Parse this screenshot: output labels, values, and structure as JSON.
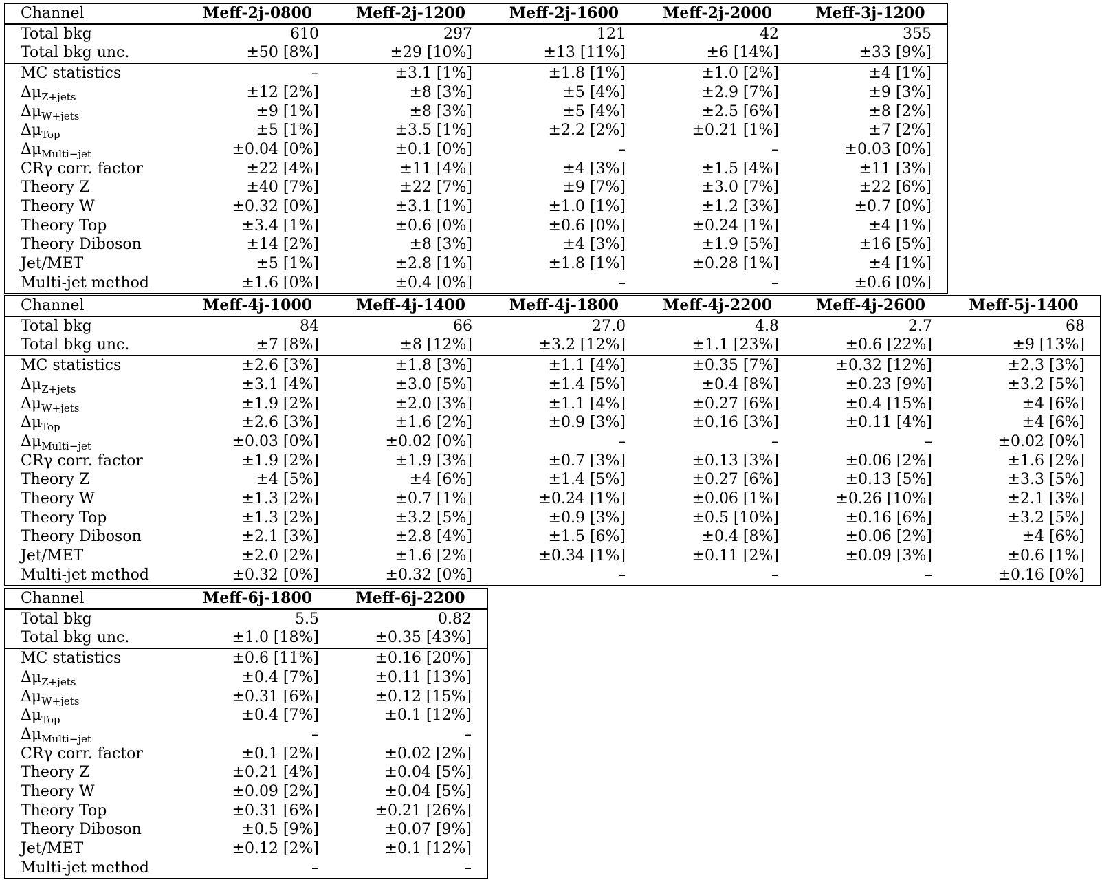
{
  "row_labels": [
    "Channel",
    "Total bkg",
    "Total bkg unc.",
    "MC statistics",
    "Δμ_Z+jets",
    "Δμ_W+jets",
    "Δμ_Top",
    "Δμ_Multi−jet",
    "CRγ corr. factor",
    "Theory Z",
    "Theory W",
    "Theory Top",
    "Theory Diboson",
    "Jet/MET",
    "Multi-jet method"
  ],
  "tables": [
    {
      "headers": [
        "Meff-2j-0800",
        "Meff-2j-1200",
        "Meff-2j-1600",
        "Meff-2j-2000",
        "Meff-3j-1200"
      ],
      "rows": [
        [
          "610",
          "297",
          "121",
          "42",
          "355"
        ],
        [
          "±50 [8%]",
          "±29 [10%]",
          "±13 [11%]",
          "±6 [14%]",
          "±33 [9%]"
        ],
        [
          "–",
          "±3.1 [1%]",
          "±1.8 [1%]",
          "±1.0 [2%]",
          "±4 [1%]"
        ],
        [
          "±12 [2%]",
          "±8 [3%]",
          "±5 [4%]",
          "±2.9 [7%]",
          "±9 [3%]"
        ],
        [
          "±9 [1%]",
          "±8 [3%]",
          "±5 [4%]",
          "±2.5 [6%]",
          "±8 [2%]"
        ],
        [
          "±5 [1%]",
          "±3.5 [1%]",
          "±2.2 [2%]",
          "±0.21 [1%]",
          "±7 [2%]"
        ],
        [
          "±0.04 [0%]",
          "±0.1 [0%]",
          "–",
          "–",
          "±0.03 [0%]"
        ],
        [
          "±22 [4%]",
          "±11 [4%]",
          "±4 [3%]",
          "±1.5 [4%]",
          "±11 [3%]"
        ],
        [
          "±40 [7%]",
          "±22 [7%]",
          "±9 [7%]",
          "±3.0 [7%]",
          "±22 [6%]"
        ],
        [
          "±0.32 [0%]",
          "±3.1 [1%]",
          "±1.0 [1%]",
          "±1.2 [3%]",
          "±0.7 [0%]"
        ],
        [
          "±3.4 [1%]",
          "±0.6 [0%]",
          "±0.6 [0%]",
          "±0.24 [1%]",
          "±4 [1%]"
        ],
        [
          "±14 [2%]",
          "±8 [3%]",
          "±4 [3%]",
          "±1.9 [5%]",
          "±16 [5%]"
        ],
        [
          "±5 [1%]",
          "±2.8 [1%]",
          "±1.8 [1%]",
          "±0.28 [1%]",
          "±4 [1%]"
        ],
        [
          "±1.6 [0%]",
          "±0.4 [0%]",
          "–",
          "–",
          "±0.6 [0%]"
        ]
      ]
    },
    {
      "headers": [
        "Meff-4j-1000",
        "Meff-4j-1400",
        "Meff-4j-1800",
        "Meff-4j-2200",
        "Meff-4j-2600",
        "Meff-5j-1400"
      ],
      "rows": [
        [
          "84",
          "66",
          "27.0",
          "4.8",
          "2.7",
          "68"
        ],
        [
          "±7 [8%]",
          "±8 [12%]",
          "±3.2 [12%]",
          "±1.1 [23%]",
          "±0.6 [22%]",
          "±9 [13%]"
        ],
        [
          "±2.6 [3%]",
          "±1.8 [3%]",
          "±1.1 [4%]",
          "±0.35 [7%]",
          "±0.32 [12%]",
          "±2.3 [3%]"
        ],
        [
          "±3.1 [4%]",
          "±3.0 [5%]",
          "±1.4 [5%]",
          "±0.4 [8%]",
          "±0.23 [9%]",
          "±3.2 [5%]"
        ],
        [
          "±1.9 [2%]",
          "±2.0 [3%]",
          "±1.1 [4%]",
          "±0.27 [6%]",
          "±0.4 [15%]",
          "±4 [6%]"
        ],
        [
          "±2.6 [3%]",
          "±1.6 [2%]",
          "±0.9 [3%]",
          "±0.16 [3%]",
          "±0.11 [4%]",
          "±4 [6%]"
        ],
        [
          "±0.03 [0%]",
          "±0.02 [0%]",
          "–",
          "–",
          "–",
          "±0.02 [0%]"
        ],
        [
          "±1.9 [2%]",
          "±1.9 [3%]",
          "±0.7 [3%]",
          "±0.13 [3%]",
          "±0.06 [2%]",
          "±1.6 [2%]"
        ],
        [
          "±4 [5%]",
          "±4 [6%]",
          "±1.4 [5%]",
          "±0.27 [6%]",
          "±0.13 [5%]",
          "±3.3 [5%]"
        ],
        [
          "±1.3 [2%]",
          "±0.7 [1%]",
          "±0.24 [1%]",
          "±0.06 [1%]",
          "±0.26 [10%]",
          "±2.1 [3%]"
        ],
        [
          "±1.3 [2%]",
          "±3.2 [5%]",
          "±0.9 [3%]",
          "±0.5 [10%]",
          "±0.16 [6%]",
          "±3.2 [5%]"
        ],
        [
          "±2.1 [3%]",
          "±2.8 [4%]",
          "±1.5 [6%]",
          "±0.4 [8%]",
          "±0.06 [2%]",
          "±4 [6%]"
        ],
        [
          "±2.0 [2%]",
          "±1.6 [2%]",
          "±0.34 [1%]",
          "±0.11 [2%]",
          "±0.09 [3%]",
          "±0.6 [1%]"
        ],
        [
          "±0.32 [0%]",
          "±0.32 [0%]",
          "–",
          "–",
          "–",
          "±0.16 [0%]"
        ]
      ]
    },
    {
      "headers": [
        "Meff-6j-1800",
        "Meff-6j-2200"
      ],
      "rows": [
        [
          "5.5",
          "0.82"
        ],
        [
          "±1.0 [18%]",
          "±0.35 [43%]"
        ],
        [
          "±0.6 [11%]",
          "±0.16 [20%]"
        ],
        [
          "±0.4 [7%]",
          "±0.11 [13%]"
        ],
        [
          "±0.31 [6%]",
          "±0.12 [15%]"
        ],
        [
          "±0.4 [7%]",
          "±0.1 [12%]"
        ],
        [
          "–",
          "–"
        ],
        [
          "±0.1 [2%]",
          "±0.02 [2%]"
        ],
        [
          "±0.21 [4%]",
          "±0.04 [5%]"
        ],
        [
          "±0.09 [2%]",
          "±0.04 [5%]"
        ],
        [
          "±0.31 [6%]",
          "±0.21 [26%]"
        ],
        [
          "±0.5 [9%]",
          "±0.07 [9%]"
        ],
        [
          "±0.12 [2%]",
          "±0.1 [12%]"
        ],
        [
          "–",
          "–"
        ]
      ]
    }
  ]
}
